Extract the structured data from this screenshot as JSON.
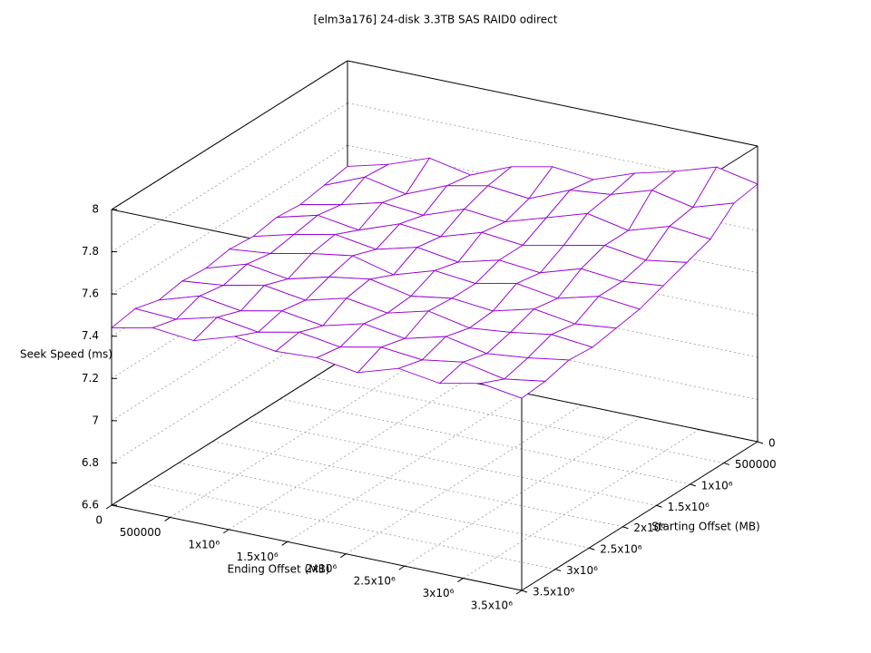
{
  "chart_data": {
    "type": "surface",
    "title": "[elm3a176] 24-disk 3.3TB SAS RAID0 odirect",
    "x_label": "Ending Offset (MB)",
    "y_label": "Starting Offset (MB)",
    "z_label": "Seek Speed (ms)",
    "color": "#9400d3",
    "x": [
      0,
      350000,
      700000,
      1050000,
      1400000,
      1750000,
      2100000,
      2450000,
      2800000,
      3150000,
      3500000
    ],
    "y": [
      0,
      350000,
      700000,
      1050000,
      1400000,
      1750000,
      2100000,
      2450000,
      2800000,
      3150000,
      3500000
    ],
    "z": [
      [
        7.5,
        7.55,
        7.62,
        7.58,
        7.66,
        7.7,
        7.68,
        7.75,
        7.8,
        7.86,
        7.82
      ],
      [
        7.48,
        7.56,
        7.52,
        7.6,
        7.64,
        7.62,
        7.7,
        7.72,
        7.78,
        7.74,
        7.8
      ],
      [
        7.46,
        7.5,
        7.55,
        7.53,
        7.6,
        7.58,
        7.64,
        7.7,
        7.66,
        7.72,
        7.7
      ],
      [
        7.47,
        7.52,
        7.49,
        7.56,
        7.54,
        7.6,
        7.58,
        7.62,
        7.66,
        7.63,
        7.66
      ],
      [
        7.45,
        7.5,
        7.54,
        7.51,
        7.56,
        7.53,
        7.58,
        7.56,
        7.62,
        7.6,
        7.62
      ],
      [
        7.46,
        7.48,
        7.52,
        7.55,
        7.5,
        7.56,
        7.54,
        7.58,
        7.55,
        7.6,
        7.58
      ],
      [
        7.44,
        7.5,
        7.47,
        7.52,
        7.55,
        7.51,
        7.54,
        7.52,
        7.57,
        7.54,
        7.56
      ],
      [
        7.45,
        7.47,
        7.51,
        7.48,
        7.53,
        7.5,
        7.55,
        7.51,
        7.53,
        7.56,
        7.54
      ],
      [
        7.43,
        7.49,
        7.46,
        7.5,
        7.47,
        7.52,
        7.49,
        7.54,
        7.5,
        7.52,
        7.55
      ],
      [
        7.46,
        7.45,
        7.5,
        7.47,
        7.51,
        7.48,
        7.52,
        7.5,
        7.53,
        7.49,
        7.52
      ],
      [
        7.44,
        7.48,
        7.46,
        7.52,
        7.49,
        7.5,
        7.47,
        7.53,
        7.5,
        7.54,
        7.51
      ]
    ],
    "xlim": [
      0,
      3500000
    ],
    "ylim": [
      0,
      3500000
    ],
    "zlim": [
      6.6,
      8
    ],
    "xticks": [
      0,
      500000,
      {
        "value": 1000000,
        "label": "1x10⁶"
      },
      {
        "value": 1500000,
        "label": "1.5x10⁶"
      },
      {
        "value": 2000000,
        "label": "2x10⁶"
      },
      {
        "value": 2500000,
        "label": "2.5x10⁶"
      },
      {
        "value": 3000000,
        "label": "3x10⁶"
      },
      {
        "value": 3500000,
        "label": "3.5x10⁶"
      }
    ],
    "yticks": [
      0,
      500000,
      {
        "value": 1000000,
        "label": "1x10⁶"
      },
      {
        "value": 1500000,
        "label": "1.5x10⁶"
      },
      {
        "value": 2000000,
        "label": "2x10⁶"
      },
      {
        "value": 2500000,
        "label": "2.5x10⁶"
      },
      {
        "value": 3000000,
        "label": "3x10⁶"
      },
      {
        "value": 3500000,
        "label": "3.5x10⁶"
      }
    ],
    "zticks": [
      6.6,
      6.8,
      7,
      7.2,
      7.4,
      7.6,
      7.8,
      8
    ],
    "grid": true
  }
}
